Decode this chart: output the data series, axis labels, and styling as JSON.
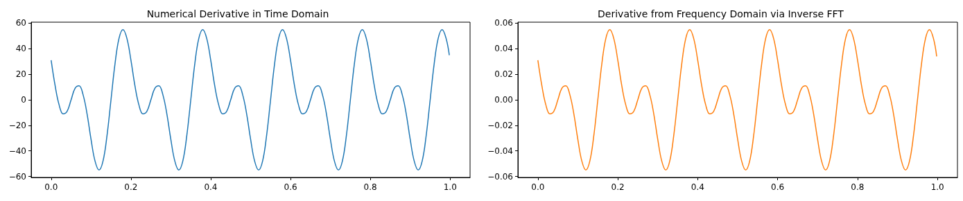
{
  "chart_data": [
    {
      "type": "line",
      "title": "Numerical Derivative in Time Domain",
      "x": [
        0,
        0.01,
        0.02,
        0.03,
        0.04,
        0.05,
        0.06,
        0.07,
        0.08,
        0.09,
        0.1,
        0.11,
        0.12,
        0.13,
        0.14,
        0.15,
        0.16,
        0.17,
        0.18,
        0.19,
        0.2,
        0.21,
        0.22,
        0.23,
        0.24,
        0.25,
        0.26,
        0.27,
        0.28,
        0.29,
        0.3,
        0.31,
        0.32,
        0.33,
        0.34,
        0.35,
        0.36,
        0.37,
        0.38,
        0.39,
        0.4,
        0.41,
        0.42,
        0.43,
        0.44,
        0.45,
        0.46,
        0.47,
        0.48,
        0.49,
        0.5,
        0.51,
        0.52,
        0.53,
        0.54,
        0.55,
        0.56,
        0.57,
        0.58,
        0.59,
        0.6,
        0.61,
        0.62,
        0.63,
        0.64,
        0.65,
        0.66,
        0.67,
        0.68,
        0.69,
        0.7,
        0.71,
        0.72,
        0.73,
        0.74,
        0.75,
        0.76,
        0.77,
        0.78,
        0.79,
        0.8,
        0.81,
        0.82,
        0.83,
        0.84,
        0.85,
        0.86,
        0.87,
        0.88,
        0.89,
        0.9,
        0.91,
        0.92,
        0.93,
        0.94,
        0.95,
        0.96,
        0.97,
        0.98,
        0.99,
        0.998
      ],
      "series": [
        {
          "color": "#1f77b4",
          "values": [
            31,
            11,
            -4,
            -11,
            -9,
            0,
            9,
            11,
            4,
            -11,
            -31,
            -48,
            -55,
            -48,
            -28,
            0,
            28,
            48,
            55,
            48,
            31,
            11,
            -4,
            -11,
            -9,
            0,
            9,
            11,
            4,
            -11,
            -31,
            -48,
            -55,
            -48,
            -28,
            0,
            28,
            48,
            55,
            48,
            31,
            11,
            -4,
            -11,
            -9,
            0,
            9,
            11,
            4,
            -11,
            -31,
            -48,
            -55,
            -48,
            -28,
            0,
            28,
            48,
            55,
            48,
            31,
            11,
            -4,
            -11,
            -9,
            0,
            9,
            11,
            4,
            -11,
            -31,
            -48,
            -55,
            -48,
            -28,
            0,
            28,
            48,
            55,
            48,
            31,
            11,
            -4,
            -11,
            -9,
            0,
            9,
            11,
            4,
            -11,
            -31,
            -48,
            -55,
            -48,
            -28,
            0,
            28,
            48,
            55,
            48,
            35
          ]
        }
      ],
      "xlim": [
        -0.05,
        1.05
      ],
      "xticks": [
        {
          "value": 0,
          "label": "0.0"
        },
        {
          "value": 0.2,
          "label": "0.2"
        },
        {
          "value": 0.4,
          "label": "0.4"
        },
        {
          "value": 0.6,
          "label": "0.6"
        },
        {
          "value": 0.8,
          "label": "0.8"
        },
        {
          "value": 1,
          "label": "1.0"
        }
      ],
      "ylim": [
        -60.8,
        60.8
      ],
      "yticks": [
        {
          "value": -60,
          "label": "−60"
        },
        {
          "value": -40,
          "label": "−40"
        },
        {
          "value": -20,
          "label": "−20"
        },
        0,
        20,
        40,
        60
      ],
      "grid": false
    },
    {
      "type": "line",
      "title": "Derivative from Frequency Domain via Inverse FFT",
      "x": [
        0,
        0.01,
        0.02,
        0.03,
        0.04,
        0.05,
        0.06,
        0.07,
        0.08,
        0.09,
        0.1,
        0.11,
        0.12,
        0.13,
        0.14,
        0.15,
        0.16,
        0.17,
        0.18,
        0.19,
        0.2,
        0.21,
        0.22,
        0.23,
        0.24,
        0.25,
        0.26,
        0.27,
        0.28,
        0.29,
        0.3,
        0.31,
        0.32,
        0.33,
        0.34,
        0.35,
        0.36,
        0.37,
        0.38,
        0.39,
        0.4,
        0.41,
        0.42,
        0.43,
        0.44,
        0.45,
        0.46,
        0.47,
        0.48,
        0.49,
        0.5,
        0.51,
        0.52,
        0.53,
        0.54,
        0.55,
        0.56,
        0.57,
        0.58,
        0.59,
        0.6,
        0.61,
        0.62,
        0.63,
        0.64,
        0.65,
        0.66,
        0.67,
        0.68,
        0.69,
        0.7,
        0.71,
        0.72,
        0.73,
        0.74,
        0.75,
        0.76,
        0.77,
        0.78,
        0.79,
        0.8,
        0.81,
        0.82,
        0.83,
        0.84,
        0.85,
        0.86,
        0.87,
        0.88,
        0.89,
        0.9,
        0.91,
        0.92,
        0.93,
        0.94,
        0.95,
        0.96,
        0.97,
        0.98,
        0.99,
        0.998
      ],
      "series": [
        {
          "color": "#ff7f0e",
          "values": [
            0.031,
            0.011,
            -0.004,
            -0.011,
            -0.009,
            0,
            0.009,
            0.011,
            0.004,
            -0.011,
            -0.031,
            -0.048,
            -0.055,
            -0.048,
            -0.028,
            0,
            0.028,
            0.048,
            0.055,
            0.048,
            0.031,
            0.011,
            -0.004,
            -0.011,
            -0.009,
            0,
            0.009,
            0.011,
            0.004,
            -0.011,
            -0.031,
            -0.048,
            -0.055,
            -0.048,
            -0.028,
            0,
            0.028,
            0.048,
            0.055,
            0.048,
            0.031,
            0.011,
            -0.004,
            -0.011,
            -0.009,
            0,
            0.009,
            0.011,
            0.004,
            -0.011,
            -0.031,
            -0.048,
            -0.055,
            -0.048,
            -0.028,
            0,
            0.028,
            0.048,
            0.055,
            0.048,
            0.031,
            0.011,
            -0.004,
            -0.011,
            -0.009,
            0,
            0.009,
            0.011,
            0.004,
            -0.011,
            -0.031,
            -0.048,
            -0.055,
            -0.048,
            -0.028,
            0,
            0.028,
            0.048,
            0.055,
            0.048,
            0.031,
            0.011,
            -0.004,
            -0.011,
            -0.009,
            0,
            0.009,
            0.011,
            0.004,
            -0.011,
            -0.031,
            -0.048,
            -0.055,
            -0.048,
            -0.028,
            0,
            0.028,
            0.048,
            0.055,
            0.048,
            0.034
          ]
        }
      ],
      "xlim": [
        -0.05,
        1.05
      ],
      "xticks": [
        {
          "value": 0,
          "label": "0.0"
        },
        {
          "value": 0.2,
          "label": "0.2"
        },
        {
          "value": 0.4,
          "label": "0.4"
        },
        {
          "value": 0.6,
          "label": "0.6"
        },
        {
          "value": 0.8,
          "label": "0.8"
        },
        {
          "value": 1,
          "label": "1.0"
        }
      ],
      "ylim": [
        -0.0608,
        0.0608
      ],
      "yticks": [
        {
          "value": -0.06,
          "label": "−0.06"
        },
        {
          "value": -0.04,
          "label": "−0.04"
        },
        {
          "value": -0.02,
          "label": "−0.02"
        },
        {
          "value": 0,
          "label": "0.00"
        },
        {
          "value": 0.02,
          "label": "0.02"
        },
        {
          "value": 0.04,
          "label": "0.04"
        },
        {
          "value": 0.06,
          "label": "0.06"
        }
      ],
      "grid": false
    }
  ]
}
